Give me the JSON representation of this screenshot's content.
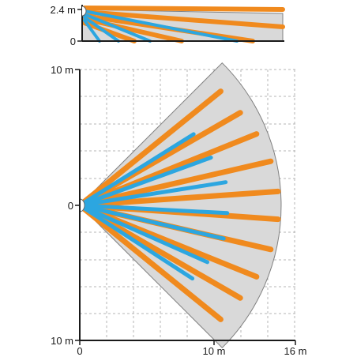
{
  "side_view": {
    "height_label": "2.4 m",
    "zero_label": "0"
  },
  "top_view": {
    "y_top_label": "10 m",
    "y_mid_label": "0",
    "y_bottom_label": "10 m",
    "x_labels": [
      "0",
      "10 m",
      "16 m"
    ]
  },
  "colors": {
    "far_beam": "#f08a1e",
    "near_beam": "#2ca6e0",
    "zone_fill": "#d9d9d9",
    "zone_outline": "#808080",
    "grid": "#b5b5b5",
    "axis": "#1a1a1a"
  },
  "coverage": {
    "max_range_m": 15,
    "half_angle_deg": 45,
    "mount_height_m": 2.4,
    "far_beams": [
      {
        "angle_deg": 39,
        "range_m": 13.5
      },
      {
        "angle_deg": 30,
        "range_m": 13.8
      },
      {
        "angle_deg": 22,
        "range_m": 14.2
      },
      {
        "angle_deg": 13,
        "range_m": 14.6
      },
      {
        "angle_deg": 4,
        "range_m": 14.8
      },
      {
        "angle_deg": -4,
        "range_m": 14.8
      },
      {
        "angle_deg": -13,
        "range_m": 14.6
      },
      {
        "angle_deg": -22,
        "range_m": 14.2
      },
      {
        "angle_deg": -30,
        "range_m": 13.8
      },
      {
        "angle_deg": -39,
        "range_m": 13.5
      }
    ],
    "near_beams": [
      {
        "angle_deg": 32,
        "range_m": 10.0
      },
      {
        "angle_deg": 20,
        "range_m": 10.4
      },
      {
        "angle_deg": 9,
        "range_m": 11.0
      },
      {
        "angle_deg": -3,
        "range_m": 11.0
      },
      {
        "angle_deg": -13,
        "range_m": 11.0
      },
      {
        "angle_deg": -24,
        "range_m": 10.4
      },
      {
        "angle_deg": -33,
        "range_m": 10.0
      }
    ]
  }
}
